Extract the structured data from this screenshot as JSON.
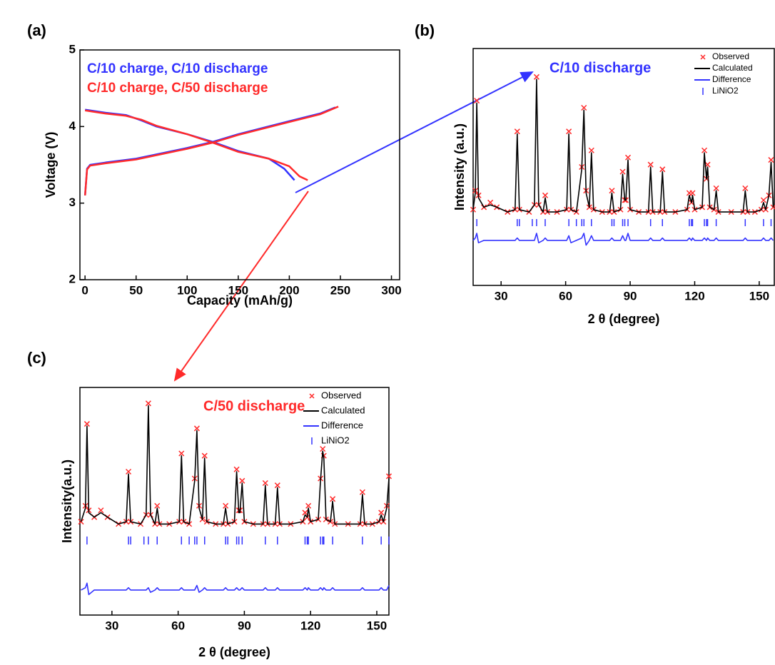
{
  "chart_data": [
    {
      "type": "line",
      "label": "(a)",
      "xlabel": "Capacity (mAh/g)",
      "ylabel": "Voltage (V)",
      "xlim": [
        -5,
        308
      ],
      "ylim": [
        2,
        5
      ],
      "xticks": [
        0,
        50,
        100,
        150,
        200,
        250,
        300
      ],
      "yticks": [
        2,
        3,
        4,
        5
      ],
      "legend_style": "text",
      "legend_position": "top-left",
      "series": [
        {
          "name": "C/10 charge, C/10 discharge",
          "color": "#3333ff",
          "mark": "line",
          "x": [
            0,
            2,
            5,
            20,
            50,
            100,
            125,
            150,
            200,
            230,
            245,
            null,
            0,
            20,
            40,
            55,
            70,
            100,
            125,
            150,
            180,
            195,
            205
          ],
          "values": [
            3.1,
            3.45,
            3.5,
            3.53,
            3.58,
            3.72,
            3.8,
            3.9,
            4.07,
            4.17,
            4.25,
            null,
            4.22,
            4.18,
            4.15,
            4.08,
            4.0,
            3.9,
            3.8,
            3.68,
            3.58,
            3.45,
            3.3
          ]
        },
        {
          "name": "C/10 charge, C/50 discharge",
          "color": "#ff2a2a",
          "mark": "line",
          "x": [
            0,
            2,
            5,
            20,
            50,
            100,
            125,
            150,
            200,
            230,
            248,
            null,
            0,
            20,
            40,
            55,
            70,
            100,
            125,
            150,
            180,
            200,
            210,
            218
          ],
          "values": [
            3.1,
            3.44,
            3.49,
            3.52,
            3.57,
            3.71,
            3.79,
            3.89,
            4.06,
            4.16,
            4.26,
            null,
            4.21,
            4.17,
            4.14,
            4.09,
            4.01,
            3.9,
            3.79,
            3.67,
            3.58,
            3.48,
            3.35,
            3.3
          ]
        }
      ]
    },
    {
      "type": "line",
      "label": "(b)",
      "xlabel": "2 θ  (degree)",
      "ylabel": "Intensity (a.u.)",
      "xlim": [
        17,
        157
      ],
      "ylim": [
        0,
        100
      ],
      "xticks": [
        30,
        60,
        90,
        120,
        150
      ],
      "legend_style": "symbol",
      "legend_position": "top-right",
      "annotation": {
        "text": "C/10 discharge",
        "color": "#3333ff"
      },
      "series": [
        {
          "name": "Observed",
          "color": "#ff2a2a",
          "mark": "cross",
          "x": [
            17,
            18,
            18.7,
            19.5,
            22,
            25,
            28,
            33,
            36.5,
            37.5,
            38.5,
            43,
            45.5,
            46.5,
            47.5,
            49.5,
            50.5,
            51.5,
            56,
            60.5,
            61.5,
            62.5,
            65,
            67.5,
            68.5,
            69.5,
            71,
            72,
            73,
            77,
            80.5,
            81.5,
            82.5,
            85.5,
            86.5,
            87.5,
            88,
            89,
            90,
            94,
            98.5,
            99.5,
            100.5,
            104,
            105,
            106,
            111,
            116.5,
            117.5,
            118.5,
            119,
            120,
            123.5,
            124.5,
            125.5,
            126,
            127,
            129,
            130,
            131,
            137,
            142.5,
            143.5,
            144.5,
            148,
            151,
            152,
            153,
            154.5,
            155.5,
            156.5
          ],
          "values": [
            32,
            40,
            78,
            38,
            33,
            35,
            33,
            31,
            32,
            65,
            32,
            31,
            34,
            88,
            34,
            31,
            38,
            31,
            31,
            32,
            65,
            32,
            31,
            50,
            75,
            40,
            33,
            57,
            32,
            31,
            31,
            40,
            31,
            32,
            48,
            36,
            36,
            54,
            32,
            31,
            31,
            51,
            31,
            31,
            49,
            31,
            31,
            32,
            39,
            35,
            39,
            32,
            33,
            57,
            45,
            51,
            33,
            32,
            41,
            31,
            31,
            31,
            41,
            31,
            31,
            32,
            36,
            32,
            38,
            53,
            33
          ]
        },
        {
          "name": "Calculated",
          "color": "#000000",
          "mark": "line",
          "x": [
            17,
            18,
            18.7,
            19.5,
            22,
            25,
            28,
            33,
            36.5,
            37.5,
            38.5,
            43,
            45.5,
            46.5,
            47.5,
            49.5,
            50.5,
            51.5,
            56,
            60.5,
            61.5,
            62.5,
            65,
            67.5,
            68.5,
            69.5,
            71,
            72,
            73,
            77,
            80.5,
            81.5,
            82.5,
            85.5,
            86.5,
            87.5,
            88,
            89,
            90,
            94,
            98.5,
            99.5,
            100.5,
            104,
            105,
            106,
            111,
            116.5,
            117.5,
            118.5,
            119,
            120,
            123.5,
            124.5,
            125.5,
            126,
            127,
            129,
            130,
            131,
            137,
            142.5,
            143.5,
            144.5,
            148,
            151,
            152,
            153,
            154.5,
            155.5,
            156.5
          ],
          "values": [
            32,
            39,
            77,
            37,
            33,
            34,
            33,
            31,
            32,
            64,
            32,
            31,
            34,
            87,
            34,
            31,
            37,
            31,
            31,
            32,
            64,
            32,
            31,
            49,
            74,
            39,
            33,
            56,
            32,
            31,
            31,
            39,
            31,
            32,
            47,
            36,
            36,
            53,
            32,
            31,
            31,
            50,
            31,
            31,
            48,
            31,
            31,
            32,
            38,
            35,
            38,
            32,
            33,
            56,
            45,
            50,
            33,
            32,
            40,
            31,
            31,
            31,
            40,
            31,
            31,
            32,
            35,
            32,
            38,
            52,
            33
          ]
        },
        {
          "name": "Difference",
          "color": "#3333ff",
          "mark": "line",
          "x": [
            17,
            18,
            18.7,
            19.5,
            22,
            25,
            28,
            33,
            36.5,
            37.5,
            38.5,
            43,
            45.5,
            46.5,
            47.5,
            49.5,
            50.5,
            51.5,
            56,
            60.5,
            61.5,
            62.5,
            65,
            67.5,
            68.5,
            69.5,
            71,
            72,
            73,
            77,
            80.5,
            81.5,
            82.5,
            85.5,
            86.5,
            87.5,
            88,
            89,
            90,
            94,
            98.5,
            99.5,
            100.5,
            104,
            105,
            106,
            111,
            116.5,
            117.5,
            118.5,
            119,
            120,
            123.5,
            124.5,
            125.5,
            126,
            127,
            129,
            130,
            131,
            137,
            142.5,
            143.5,
            144.5,
            148,
            151,
            152,
            153,
            154.5,
            155.5,
            156.5
          ],
          "values": [
            19,
            20,
            22,
            18,
            19,
            19,
            19,
            19,
            19,
            20,
            19,
            19,
            19,
            22,
            18,
            19,
            20,
            19,
            19,
            19,
            21,
            18,
            19,
            20,
            22,
            17,
            19,
            21,
            19,
            19,
            19,
            20,
            19,
            19,
            21,
            19,
            19,
            22,
            19,
            19,
            19,
            20,
            19,
            19,
            20,
            19,
            19,
            19,
            20,
            19,
            20,
            19,
            19,
            20,
            19,
            20,
            19,
            19,
            20,
            19,
            19,
            19,
            20,
            19,
            19,
            19,
            20,
            19,
            19,
            20,
            19
          ]
        },
        {
          "name": "LiNiO2",
          "color": "#3333ff",
          "mark": "tick",
          "x": [
            18.7,
            37.5,
            38.5,
            44.5,
            46.5,
            50.5,
            61.5,
            65,
            67.5,
            68.5,
            72,
            81.5,
            82.5,
            86.5,
            87.5,
            89,
            99.5,
            105,
            117.5,
            118.5,
            119,
            124.5,
            125.5,
            126,
            130,
            143.5,
            152,
            155.5
          ]
        }
      ]
    },
    {
      "type": "line",
      "label": "(c)",
      "xlabel": "2 θ (degree)",
      "ylabel": "Intensity(a.u.)",
      "xlim": [
        15.5,
        155.5
      ],
      "ylim": [
        0,
        100
      ],
      "xticks": [
        30,
        60,
        90,
        120,
        150
      ],
      "legend_style": "symbol",
      "legend_position": "top-right",
      "annotation": {
        "text": "C/50 discharge",
        "color": "#ff2a2a"
      },
      "series": [
        {
          "name": "Observed",
          "color": "#ff2a2a",
          "mark": "cross",
          "x": [
            16,
            18,
            18.7,
            19.5,
            22,
            25,
            28,
            33,
            36.5,
            37.5,
            38.5,
            43,
            45.5,
            46.5,
            47.5,
            49.5,
            50.5,
            51.5,
            56,
            60.5,
            61.5,
            62.5,
            65,
            67.5,
            68.5,
            69.5,
            71,
            72,
            73,
            77,
            80.5,
            81.5,
            82.5,
            85.5,
            86.5,
            87.5,
            88,
            89,
            90,
            94,
            98.5,
            99.5,
            100.5,
            104,
            105,
            106,
            111,
            116.5,
            117.5,
            118.5,
            119,
            120,
            123.5,
            124.5,
            125.5,
            126,
            127,
            129,
            130,
            131,
            137,
            142.5,
            143.5,
            144.5,
            148,
            151,
            152,
            153,
            154.5,
            155.5
          ],
          "values": [
            41,
            48,
            84,
            46,
            43,
            46,
            43,
            40,
            41,
            63,
            41,
            40,
            44,
            93,
            44,
            40,
            48,
            40,
            40,
            41,
            71,
            41,
            40,
            60,
            82,
            48,
            42,
            70,
            41,
            40,
            40,
            48,
            40,
            41,
            64,
            46,
            46,
            59,
            41,
            40,
            40,
            58,
            40,
            40,
            57,
            40,
            40,
            41,
            45,
            43,
            48,
            41,
            42,
            60,
            73,
            70,
            42,
            41,
            51,
            40,
            40,
            40,
            54,
            40,
            40,
            41,
            45,
            41,
            48,
            61
          ]
        },
        {
          "name": "Calculated",
          "color": "#000000",
          "mark": "line",
          "x": [
            16,
            18,
            18.7,
            19.5,
            22,
            25,
            28,
            33,
            36.5,
            37.5,
            38.5,
            43,
            45.5,
            46.5,
            47.5,
            49.5,
            50.5,
            51.5,
            56,
            60.5,
            61.5,
            62.5,
            65,
            67.5,
            68.5,
            69.5,
            71,
            72,
            73,
            77,
            80.5,
            81.5,
            82.5,
            85.5,
            86.5,
            87.5,
            88,
            89,
            90,
            94,
            98.5,
            99.5,
            100.5,
            104,
            105,
            106,
            111,
            116.5,
            117.5,
            118.5,
            119,
            120,
            123.5,
            124.5,
            125.5,
            126,
            127,
            129,
            130,
            131,
            137,
            142.5,
            143.5,
            144.5,
            148,
            151,
            152,
            153,
            154.5,
            155.5
          ],
          "values": [
            41,
            47,
            83,
            45,
            43,
            45,
            43,
            40,
            41,
            62,
            41,
            40,
            44,
            92,
            44,
            40,
            47,
            40,
            40,
            41,
            70,
            41,
            40,
            59,
            81,
            47,
            42,
            69,
            41,
            40,
            40,
            47,
            40,
            41,
            63,
            45,
            45,
            58,
            41,
            40,
            40,
            57,
            40,
            40,
            56,
            40,
            40,
            41,
            44,
            43,
            47,
            41,
            42,
            59,
            72,
            69,
            42,
            41,
            50,
            40,
            40,
            40,
            53,
            40,
            40,
            41,
            44,
            41,
            47,
            60
          ]
        },
        {
          "name": "Difference",
          "color": "#3333ff",
          "mark": "line",
          "x": [
            16,
            18,
            18.7,
            19.5,
            22,
            25,
            28,
            33,
            36.5,
            37.5,
            38.5,
            43,
            45.5,
            46.5,
            47.5,
            49.5,
            50.5,
            51.5,
            56,
            60.5,
            61.5,
            62.5,
            65,
            67.5,
            68.5,
            69.5,
            71,
            72,
            73,
            77,
            80.5,
            81.5,
            82.5,
            85.5,
            86.5,
            87.5,
            88,
            89,
            90,
            94,
            98.5,
            99.5,
            100.5,
            104,
            105,
            106,
            111,
            116.5,
            117.5,
            118.5,
            119,
            120,
            123.5,
            124.5,
            125.5,
            126,
            127,
            129,
            130,
            131,
            137,
            142.5,
            143.5,
            144.5,
            148,
            151,
            152,
            153,
            154.5,
            155.5
          ],
          "values": [
            11,
            12,
            14,
            9,
            11,
            11,
            11,
            11,
            11,
            12,
            11,
            11,
            11,
            12,
            10,
            11,
            12,
            11,
            11,
            11,
            12,
            11,
            11,
            11,
            13,
            10,
            11,
            12,
            11,
            11,
            11,
            12,
            11,
            11,
            12,
            11,
            11,
            12,
            11,
            11,
            11,
            12,
            11,
            11,
            12,
            11,
            11,
            11,
            12,
            11,
            12,
            11,
            11,
            12,
            11,
            12,
            11,
            11,
            12,
            11,
            11,
            11,
            12,
            11,
            11,
            11,
            12,
            11,
            11,
            13
          ]
        },
        {
          "name": "LiNiO2",
          "color": "#3333ff",
          "mark": "tick",
          "x": [
            18.7,
            37.5,
            38.5,
            44.5,
            46.5,
            50.5,
            61.5,
            65,
            67.5,
            68.5,
            72,
            81.5,
            82.5,
            86.5,
            87.5,
            89,
            99.5,
            105,
            117.5,
            118.5,
            119,
            124.5,
            125.5,
            126,
            130,
            143.5,
            152,
            155.5
          ]
        }
      ]
    }
  ]
}
